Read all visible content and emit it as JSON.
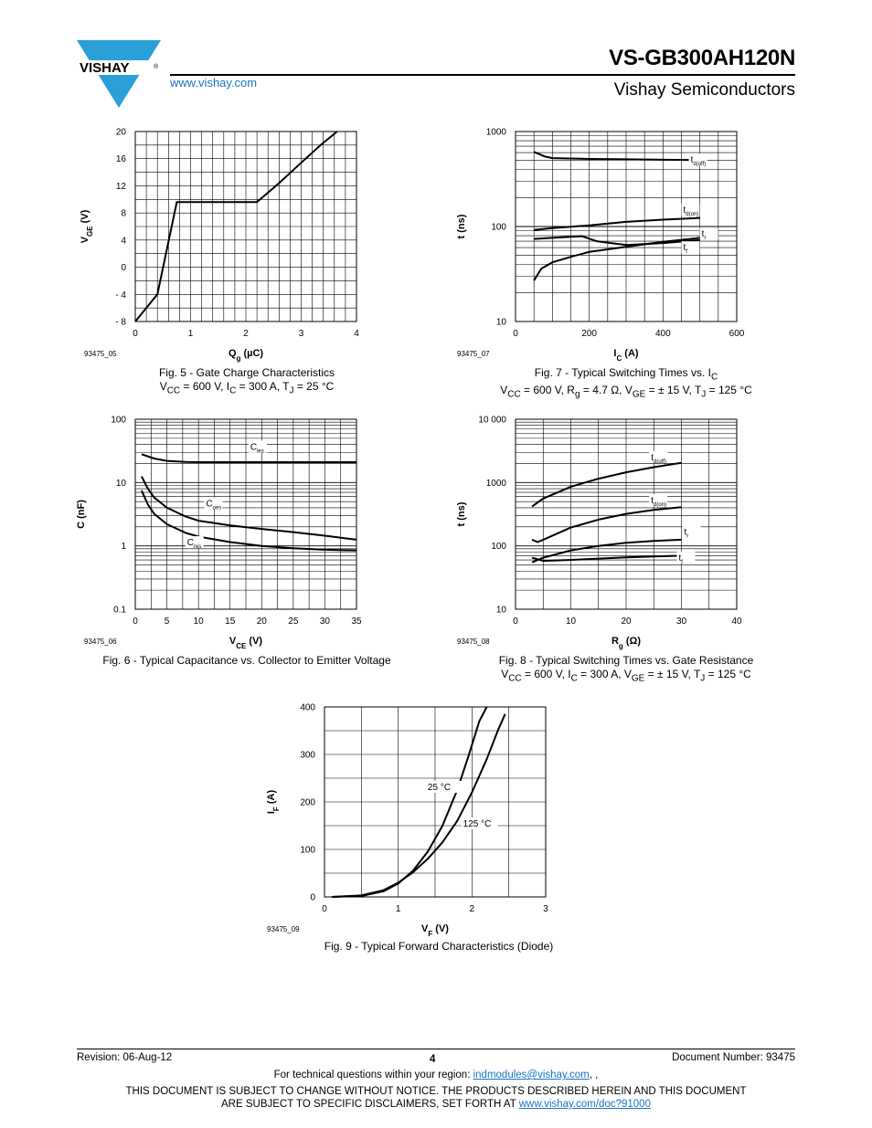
{
  "header": {
    "logo_text": "VISHAY",
    "logo_reg": "®",
    "website": "www.vishay.com",
    "part_number": "VS-GB300AH120N",
    "company": "Vishay Semiconductors"
  },
  "footer": {
    "revision": "Revision: 06-Aug-12",
    "page": "4",
    "doc_number": "Document Number: 93475",
    "tech_prefix": "For technical questions within your region: ",
    "tech_email": "indmodules@vishay.com",
    "tech_suffix": ", ,",
    "disclaimer_line1": "THIS DOCUMENT IS SUBJECT TO CHANGE WITHOUT NOTICE. THE PRODUCTS DESCRIBED HEREIN AND THIS DOCUMENT",
    "disclaimer_line2_prefix": "ARE SUBJECT TO SPECIFIC DISCLAIMERS, SET FORTH AT ",
    "disclaimer_link": "www.vishay.com/doc?91000"
  },
  "chart_data": [
    {
      "id": "fig5",
      "type": "line",
      "figure_code": "93475_05",
      "caption": [
        "Fig. 5 - Gate Charge Characteristics",
        "V<sub>CC</sub> = 600 V, I<sub>C</sub> = 300 A, T<sub>J</sub> = 25 °C"
      ],
      "xlabel": "Q<tspan baseline-shift='sub' font-size='8'>g</tspan> (µC)",
      "ylabel": "V<tspan baseline-shift='sub' font-size='8'>GE</tspan> (V)",
      "xscale": "linear",
      "yscale": "linear",
      "xlim": [
        0,
        4
      ],
      "ylim": [
        -8,
        20
      ],
      "xticks": [
        0,
        1,
        2,
        3,
        4
      ],
      "yticks": [
        -8,
        -4,
        0,
        4,
        8,
        12,
        16,
        20
      ],
      "ytick_labels": [
        "- 8",
        "- 4",
        "0",
        "4",
        "8",
        "12",
        "16",
        "20"
      ],
      "xgrid_step": 0.2,
      "ygrid_step": 2,
      "series": [
        {
          "x": [
            0,
            0.4,
            0.75,
            2.2,
            2.6,
            3.0,
            3.35,
            3.65
          ],
          "y": [
            -8,
            -4,
            9.6,
            9.6,
            12.4,
            15.4,
            18,
            20
          ]
        }
      ]
    },
    {
      "id": "fig7",
      "type": "line",
      "figure_code": "93475_07",
      "caption": [
        "Fig. 7 - Typical Switching Times vs. I<sub>C</sub>",
        "V<sub>CC</sub> = 600 V, R<sub>g</sub> = 4.7 Ω, V<sub>GE</sub> = ± 15 V, T<sub>J</sub> = 125 °C"
      ],
      "xlabel": "I<tspan baseline-shift='sub' font-size='8'>C</tspan> (A)",
      "ylabel": "t (ns)",
      "xscale": "linear",
      "yscale": "log",
      "xlim": [
        0,
        600
      ],
      "ylim": [
        10,
        1000
      ],
      "xticks": [
        0,
        200,
        400,
        600
      ],
      "yticks": [
        10,
        100,
        1000
      ],
      "ytick_labels": [
        "10",
        "100",
        "1000"
      ],
      "xgrid_step": 50,
      "series": [
        {
          "name": "t<tspan baseline-shift='sub' font-size='6'>d(off)</tspan>",
          "x": [
            50,
            80,
            100,
            200,
            300,
            400,
            500
          ],
          "y": [
            610,
            545,
            525,
            515,
            510,
            505,
            500
          ],
          "label_at": [
            475,
            470
          ]
        },
        {
          "name": "t<tspan baseline-shift='sub' font-size='6'>d(on)</tspan>",
          "x": [
            50,
            100,
            200,
            300,
            400,
            500
          ],
          "y": [
            92,
            96,
            103,
            112,
            118,
            123
          ],
          "label_at": [
            455,
            140
          ]
        },
        {
          "name": "t<tspan baseline-shift='sub' font-size='6'>r</tspan>",
          "x": [
            50,
            100,
            180,
            220,
            300,
            400,
            500
          ],
          "y": [
            74,
            76,
            79,
            70,
            64,
            67,
            72
          ],
          "label_at": [
            505,
            78
          ]
        },
        {
          "name": "t<tspan baseline-shift='sub' font-size='6'>f</tspan>",
          "x": [
            50,
            70,
            100,
            150,
            200,
            300,
            400,
            500
          ],
          "y": [
            27,
            36,
            42,
            48,
            54,
            61,
            69,
            76
          ],
          "label_at": [
            455,
            56
          ]
        }
      ]
    },
    {
      "id": "fig6",
      "type": "line",
      "figure_code": "93475_06",
      "caption": [
        "Fig. 6 - Typical Capacitance vs. Collector to Emitter Voltage"
      ],
      "xlabel": "V<tspan baseline-shift='sub' font-size='8'>CE</tspan> (V)",
      "ylabel": "C (nF)",
      "xscale": "linear",
      "yscale": "log",
      "xlim": [
        0,
        35
      ],
      "ylim": [
        0.1,
        100
      ],
      "xticks": [
        0,
        5,
        10,
        15,
        20,
        25,
        30,
        35
      ],
      "yticks": [
        0.1,
        1,
        10,
        100
      ],
      "ytick_labels": [
        "0.1",
        "1",
        "10",
        "100"
      ],
      "xgrid_step": 2.5,
      "series": [
        {
          "name": "C<tspan baseline-shift='sub' font-size='6'>ies</tspan>",
          "x": [
            1,
            3,
            5,
            8,
            10,
            15,
            20,
            25,
            30,
            35
          ],
          "y": [
            28,
            24,
            22,
            21.2,
            21,
            21,
            21,
            21,
            21,
            21
          ],
          "label_at": [
            18.2,
            33
          ]
        },
        {
          "name": "C<tspan baseline-shift='sub' font-size='6'>oes</tspan>",
          "x": [
            1,
            2,
            3,
            5,
            8,
            10,
            15,
            20,
            25,
            30,
            35
          ],
          "y": [
            12.5,
            8,
            5.8,
            4.0,
            2.9,
            2.5,
            2.1,
            1.85,
            1.65,
            1.45,
            1.25
          ],
          "label_at": [
            11.2,
            4.2
          ]
        },
        {
          "name": "C<tspan baseline-shift='sub' font-size='6'>res</tspan>",
          "x": [
            1,
            2,
            3,
            5,
            8,
            10,
            15,
            20,
            25,
            30,
            35
          ],
          "y": [
            7.5,
            4.5,
            3.2,
            2.2,
            1.6,
            1.4,
            1.15,
            1.0,
            0.92,
            0.87,
            0.85
          ],
          "label_at": [
            8.2,
            1.02
          ]
        }
      ]
    },
    {
      "id": "fig8",
      "type": "line",
      "figure_code": "93475_08",
      "caption": [
        "Fig. 8 - Typical Switching Times vs. Gate Resistance",
        "V<sub>CC</sub> = 600 V, I<sub>C</sub> = 300 A, V<sub>GE</sub> = ± 15 V, T<sub>J</sub> = 125 °C"
      ],
      "xlabel": "R<tspan baseline-shift='sub' font-size='8'>g</tspan> (Ω)",
      "ylabel": "t (ns)",
      "xscale": "linear",
      "yscale": "log",
      "xlim": [
        0,
        40
      ],
      "ylim": [
        10,
        10000
      ],
      "xticks": [
        0,
        10,
        20,
        30,
        40
      ],
      "yticks": [
        10,
        100,
        1000,
        10000
      ],
      "ytick_labels": [
        "10",
        "100",
        "1000",
        "10 000"
      ],
      "xgrid_step": 5,
      "series": [
        {
          "name": "t<tspan baseline-shift='sub' font-size='6'>d(off)</tspan>",
          "x": [
            3,
            5,
            10,
            15,
            20,
            25,
            30
          ],
          "y": [
            420,
            560,
            860,
            1150,
            1450,
            1750,
            2050
          ],
          "label_at": [
            24.5,
            2250
          ]
        },
        {
          "name": "t<tspan baseline-shift='sub' font-size='6'>d(on)</tspan>",
          "x": [
            3,
            4,
            5,
            10,
            15,
            20,
            25,
            30
          ],
          "y": [
            125,
            115,
            125,
            195,
            260,
            320,
            370,
            410
          ],
          "label_at": [
            24.5,
            470
          ]
        },
        {
          "name": "t<tspan baseline-shift='sub' font-size='6'>r</tspan>",
          "x": [
            3,
            5,
            10,
            15,
            20,
            25,
            30
          ],
          "y": [
            55,
            65,
            85,
            100,
            112,
            120,
            125
          ],
          "label_at": [
            30.5,
            150
          ]
        },
        {
          "name": "t<tspan baseline-shift='sub' font-size='6'>f</tspan>",
          "x": [
            3,
            5,
            10,
            15,
            20,
            25,
            30
          ],
          "y": [
            65,
            58,
            60,
            63,
            66,
            68,
            70
          ],
          "label_at": [
            29.5,
            58
          ]
        }
      ]
    },
    {
      "id": "fig9",
      "type": "line",
      "figure_code": "93475_09",
      "caption": [
        "Fig. 9 - Typical Forward Characteristics (Diode)"
      ],
      "xlabel": "V<tspan baseline-shift='sub' font-size='8'>F</tspan> (V)",
      "ylabel": "I<tspan baseline-shift='sub' font-size='8'>F</tspan> (A)",
      "xscale": "linear",
      "yscale": "linear",
      "xlim": [
        0,
        3
      ],
      "ylim": [
        0,
        400
      ],
      "xticks": [
        0,
        1,
        2,
        3
      ],
      "yticks": [
        0,
        100,
        200,
        300,
        400
      ],
      "ytick_labels": [
        "0",
        "100",
        "200",
        "300",
        "400"
      ],
      "xgrid_step": 0.5,
      "ygrid_step": 50,
      "series": [
        {
          "name": "25 °C",
          "x": [
            0.1,
            0.5,
            0.8,
            1.0,
            1.2,
            1.4,
            1.6,
            1.8,
            1.95,
            2.1,
            2.2
          ],
          "y": [
            0,
            2,
            12,
            28,
            55,
            95,
            150,
            225,
            295,
            370,
            400
          ],
          "label_at": [
            1.4,
            225
          ]
        },
        {
          "name": "125 °C",
          "x": [
            0.1,
            0.5,
            0.8,
            1.0,
            1.2,
            1.4,
            1.6,
            1.8,
            2.0,
            2.2,
            2.35,
            2.45
          ],
          "y": [
            0,
            3,
            14,
            30,
            52,
            80,
            115,
            160,
            220,
            290,
            350,
            385
          ],
          "label_at": [
            1.88,
            148
          ]
        }
      ]
    }
  ]
}
